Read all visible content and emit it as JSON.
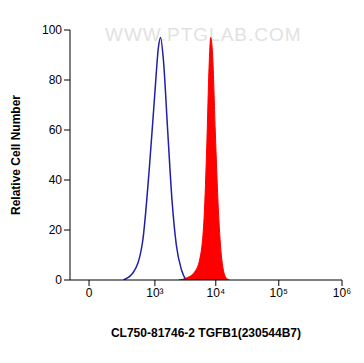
{
  "chart_data": {
    "type": "area",
    "x_label": "CL750-81746-2 TGFB1(230544B7)",
    "y_label": "Relative Cell Number",
    "annotations": [
      "WWW.PTGLAB.COM"
    ],
    "log": "x",
    "xlim": [
      -100,
      1000000
    ],
    "xticks": [
      0,
      {
        "value": 1000,
        "label": "10³"
      },
      {
        "value": 10000,
        "label": "10⁴"
      },
      {
        "value": 100000,
        "label": "10⁵"
      },
      {
        "value": 1000000,
        "label": "10⁶"
      }
    ],
    "ylim": [
      0,
      100
    ],
    "yticks": [
      0,
      20,
      40,
      60,
      80,
      100
    ],
    "series": [
      {
        "type": "line",
        "color": "#1f1fa8",
        "x": [
          250,
          400,
          600,
          800,
          1000,
          1150,
          1250,
          1400,
          1650,
          1950,
          2300,
          2800,
          3300
        ],
        "values": [
          0,
          3,
          15,
          45,
          75,
          93,
          97,
          88,
          60,
          32,
          14,
          4,
          0
        ]
      },
      {
        "type": "area",
        "color": "#ff0000",
        "x": [
          2500,
          3500,
          4500,
          5500,
          6500,
          7200,
          7800,
          8300,
          8900,
          9800,
          11000,
          12500,
          14500,
          16500
        ],
        "values": [
          0,
          1,
          3,
          8,
          25,
          55,
          85,
          97,
          90,
          60,
          28,
          8,
          1,
          0
        ]
      }
    ]
  }
}
